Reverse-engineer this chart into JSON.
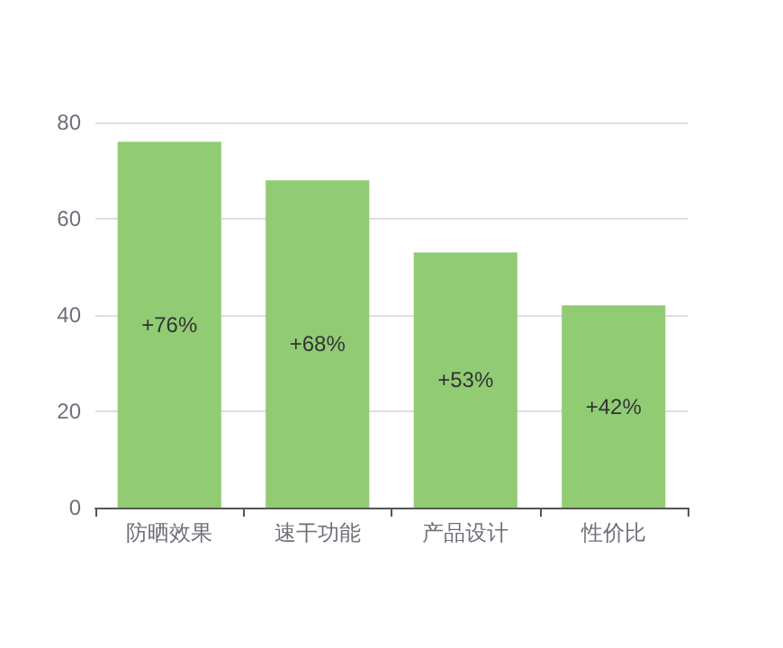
{
  "chart_data": {
    "type": "bar",
    "categories": [
      "防晒效果",
      "速干功能",
      "产品设计",
      "性价比"
    ],
    "values": [
      76,
      68,
      53,
      42
    ],
    "value_labels": [
      "+76%",
      "+68%",
      "+53%",
      "+42%"
    ],
    "color": "#91cc75",
    "ylim": [
      0,
      80
    ],
    "yticks": [
      0,
      20,
      40,
      60,
      80
    ],
    "grid": "y"
  }
}
